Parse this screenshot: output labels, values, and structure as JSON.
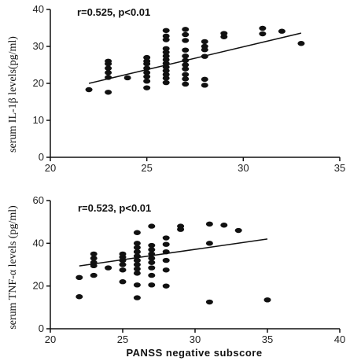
{
  "chart_data": [
    {
      "type": "scatter",
      "title": "",
      "annotation": "r=0.525, p<0.01",
      "xlabel": "",
      "ylabel": "serum IL-1β levels(pg/ml)",
      "xlim": [
        20,
        35
      ],
      "ylim": [
        0,
        40
      ],
      "xticks": [
        20,
        25,
        30,
        35
      ],
      "yticks": [
        0,
        10,
        20,
        30,
        40
      ],
      "trendline": {
        "x": [
          22,
          33
        ],
        "y": [
          20.0,
          33.6
        ]
      },
      "points": [
        [
          22,
          18.3
        ],
        [
          23,
          17.6
        ],
        [
          23,
          21.6
        ],
        [
          23,
          22.9
        ],
        [
          23,
          24.1
        ],
        [
          23,
          25.3
        ],
        [
          23,
          26.0
        ],
        [
          24,
          21.5
        ],
        [
          25,
          18.8
        ],
        [
          25,
          20.6
        ],
        [
          25,
          21.8
        ],
        [
          25,
          22.9
        ],
        [
          25,
          24.1
        ],
        [
          25,
          25.3
        ],
        [
          25,
          26.0
        ],
        [
          25,
          27.0
        ],
        [
          26,
          20.2
        ],
        [
          26,
          21.4
        ],
        [
          26,
          22.4
        ],
        [
          26,
          23.4
        ],
        [
          26,
          24.4
        ],
        [
          26,
          25.4
        ],
        [
          26,
          26.4
        ],
        [
          26,
          27.4
        ],
        [
          26,
          28.4
        ],
        [
          26,
          29.4
        ],
        [
          26,
          31.8
        ],
        [
          26,
          32.8
        ],
        [
          26,
          34.3
        ],
        [
          27,
          19.8
        ],
        [
          27,
          21.2
        ],
        [
          27,
          22.4
        ],
        [
          27,
          23.9
        ],
        [
          27,
          25.0
        ],
        [
          27,
          26.2
        ],
        [
          27,
          27.4
        ],
        [
          27,
          29.0
        ],
        [
          27,
          31.6
        ],
        [
          27,
          33.2
        ],
        [
          27,
          34.6
        ],
        [
          28,
          19.5
        ],
        [
          28,
          21.1
        ],
        [
          28,
          27.3
        ],
        [
          28,
          29.1
        ],
        [
          28,
          30.0
        ],
        [
          28,
          31.3
        ],
        [
          29,
          32.6
        ],
        [
          29,
          33.5
        ],
        [
          31,
          33.4
        ],
        [
          31,
          34.9
        ],
        [
          32,
          34.1
        ],
        [
          33,
          30.8
        ]
      ]
    },
    {
      "type": "scatter",
      "title": "",
      "annotation": "r=0.523, p<0.01",
      "xlabel": "PANSS negative subscore",
      "ylabel": "serum TNF-α levels (pg/ml)",
      "xlim": [
        20,
        40
      ],
      "ylim": [
        0,
        60
      ],
      "xticks": [
        20,
        25,
        30,
        35,
        40
      ],
      "yticks": [
        0,
        20,
        40,
        60
      ],
      "trendline": {
        "x": [
          22,
          35
        ],
        "y": [
          29.4,
          42.0
        ]
      },
      "points": [
        [
          22,
          15.0
        ],
        [
          22,
          24.0
        ],
        [
          23,
          25.0
        ],
        [
          23,
          29.5
        ],
        [
          23,
          31.0
        ],
        [
          23,
          33.0
        ],
        [
          23,
          35.0
        ],
        [
          24,
          28.5
        ],
        [
          25,
          22.0
        ],
        [
          25,
          27.5
        ],
        [
          25,
          30.0
        ],
        [
          25,
          32.0
        ],
        [
          25,
          33.5
        ],
        [
          25,
          35.0
        ],
        [
          26,
          14.5
        ],
        [
          26,
          20.5
        ],
        [
          26,
          26.0
        ],
        [
          26,
          28.0
        ],
        [
          26,
          30.0
        ],
        [
          26,
          32.0
        ],
        [
          26,
          34.0
        ],
        [
          26,
          36.0
        ],
        [
          26,
          38.0
        ],
        [
          26,
          40.0
        ],
        [
          26,
          45.0
        ],
        [
          27,
          20.5
        ],
        [
          27,
          25.0
        ],
        [
          27,
          28.5
        ],
        [
          27,
          31.0
        ],
        [
          27,
          33.0
        ],
        [
          27,
          35.0
        ],
        [
          27,
          37.0
        ],
        [
          27,
          39.0
        ],
        [
          27,
          48.0
        ],
        [
          28,
          20.0
        ],
        [
          28,
          27.5
        ],
        [
          28,
          32.0
        ],
        [
          28,
          36.0
        ],
        [
          28,
          39.5
        ],
        [
          28,
          42.5
        ],
        [
          29,
          46.5
        ],
        [
          29,
          48.0
        ],
        [
          31,
          12.5
        ],
        [
          31,
          40.0
        ],
        [
          31,
          49.0
        ],
        [
          32,
          48.5
        ],
        [
          33,
          46.0
        ],
        [
          35,
          13.5
        ]
      ]
    }
  ]
}
